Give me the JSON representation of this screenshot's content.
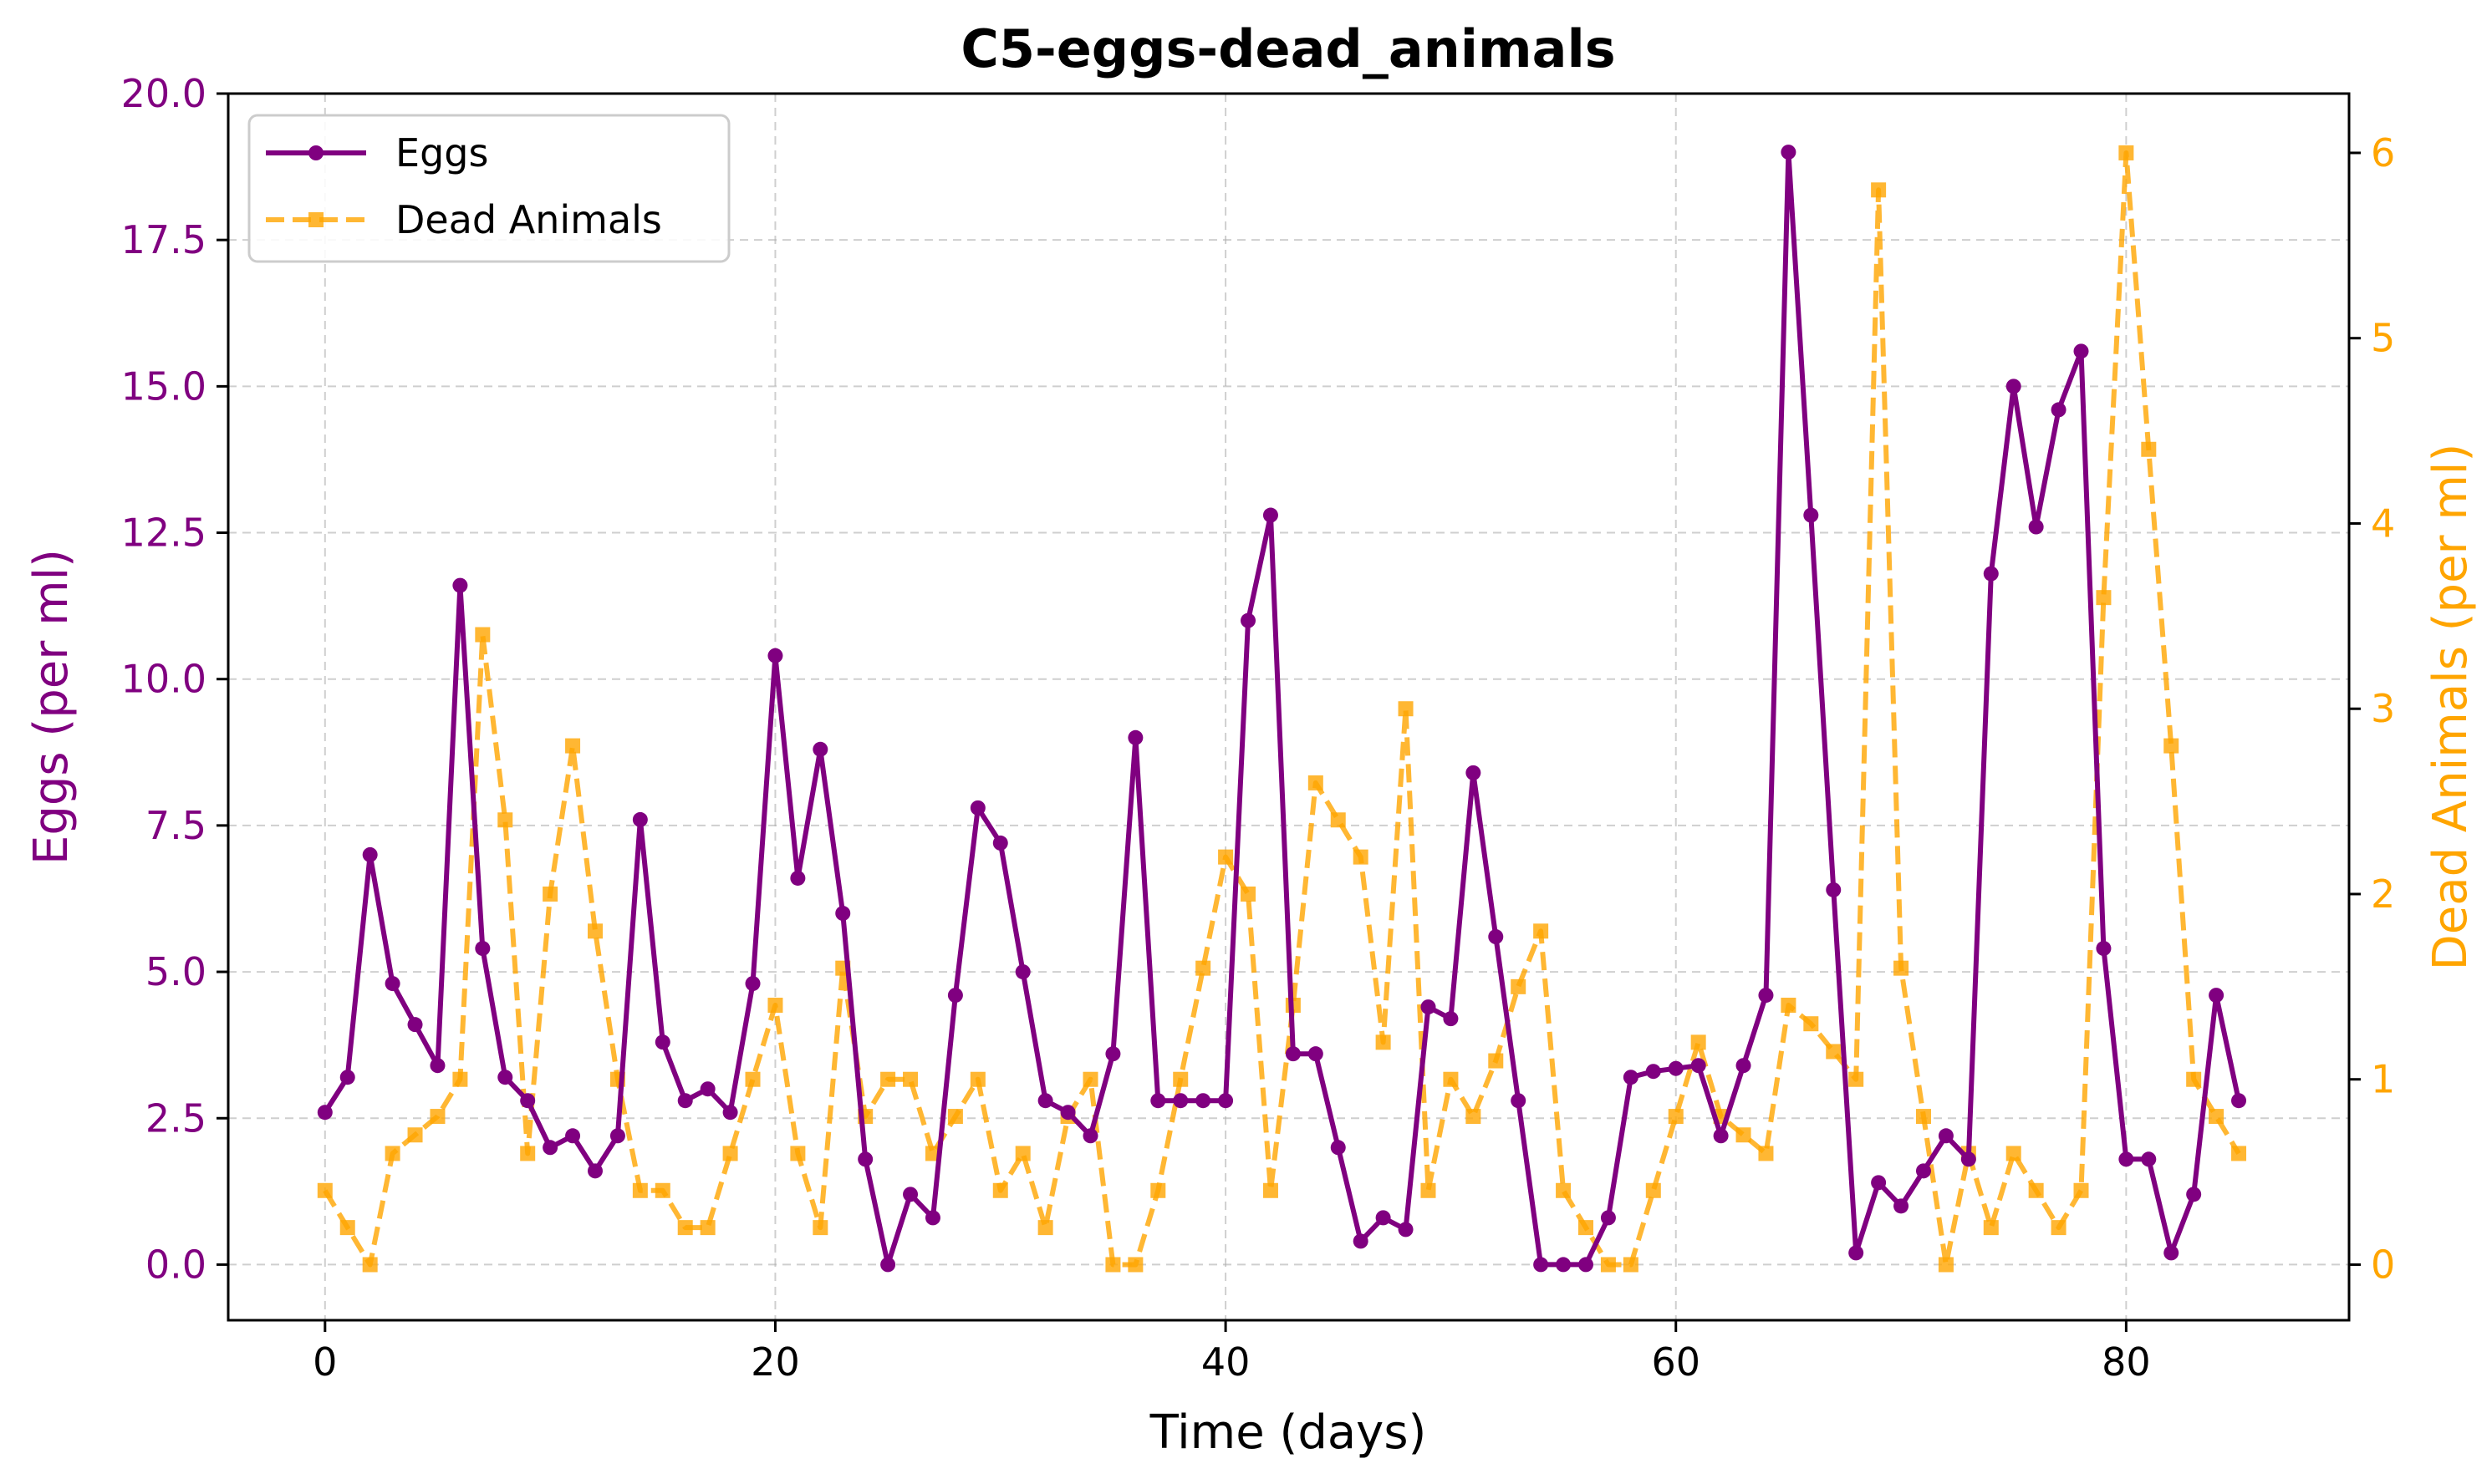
{
  "chart_data": {
    "type": "line",
    "title": "C5-eggs-dead_animals",
    "xlabel": "Time (days)",
    "ylabel": "Eggs (per ml)",
    "y2label": "Dead Animals (per ml)",
    "xlim": [
      -4.3,
      89.9
    ],
    "ylim": [
      -0.95,
      20.0
    ],
    "y2lim": [
      -0.3,
      6.32
    ],
    "xticks": [
      0,
      20,
      40,
      60,
      80
    ],
    "yticks": [
      0.0,
      2.5,
      5.0,
      7.5,
      10.0,
      12.5,
      15.0,
      17.5,
      20.0
    ],
    "y2ticks": [
      0,
      1,
      2,
      3,
      4,
      5,
      6
    ],
    "grid": true,
    "legend_position": "top-left",
    "colors": {
      "eggs": "#800080",
      "dead_animals": "#FFA500"
    },
    "series": [
      {
        "name": "Eggs",
        "axis": "left",
        "style": "solid-circle",
        "x": [
          0,
          1,
          2,
          3,
          4,
          5,
          6,
          7,
          8,
          9,
          10,
          11,
          12,
          13,
          14,
          15,
          16,
          17,
          18,
          19,
          20,
          21,
          22,
          23,
          24,
          25,
          26,
          27,
          28,
          29,
          30,
          31,
          32,
          33,
          34,
          35,
          36,
          37,
          38,
          39,
          40,
          41,
          42,
          43,
          44,
          45,
          46,
          47,
          48,
          49,
          50,
          51,
          52,
          53,
          54,
          55,
          56,
          57,
          58,
          59,
          60,
          61,
          62,
          63,
          64,
          65,
          66,
          67,
          68,
          69,
          70,
          71,
          72,
          73,
          74,
          75,
          76,
          77,
          78,
          79,
          80,
          81,
          82,
          83,
          84,
          85
        ],
        "values": [
          2.6,
          3.2,
          7.0,
          4.8,
          4.1,
          3.4,
          11.6,
          5.4,
          3.2,
          2.8,
          2.0,
          2.2,
          1.6,
          2.2,
          7.6,
          3.8,
          2.8,
          3.0,
          2.6,
          4.8,
          10.4,
          6.6,
          8.8,
          6.0,
          1.8,
          0.0,
          1.2,
          0.8,
          4.6,
          7.8,
          7.2,
          5.0,
          2.8,
          2.6,
          2.2,
          3.6,
          9.0,
          2.8,
          2.8,
          2.8,
          2.8,
          11.0,
          12.8,
          3.6,
          3.6,
          2.0,
          0.4,
          0.8,
          0.6,
          4.4,
          4.2,
          8.4,
          5.6,
          2.8,
          0.0,
          0.0,
          0.0,
          0.8,
          3.2,
          3.3,
          3.35,
          3.4,
          2.2,
          3.4,
          4.6,
          19.0,
          12.8,
          6.4,
          0.2,
          1.4,
          1.0,
          1.6,
          2.2,
          1.8,
          11.8,
          15.0,
          12.6,
          14.6,
          15.6,
          5.4,
          1.8,
          1.8,
          0.2,
          1.2,
          4.6,
          2.8
        ]
      },
      {
        "name": "Dead Animals",
        "axis": "right",
        "style": "dashed-square",
        "x": [
          0,
          1,
          2,
          3,
          4,
          5,
          6,
          7,
          8,
          9,
          10,
          11,
          12,
          13,
          14,
          15,
          16,
          17,
          18,
          19,
          20,
          21,
          22,
          23,
          24,
          25,
          26,
          27,
          28,
          29,
          30,
          31,
          32,
          33,
          34,
          35,
          36,
          37,
          38,
          39,
          40,
          41,
          42,
          43,
          44,
          45,
          46,
          47,
          48,
          49,
          50,
          51,
          52,
          53,
          54,
          55,
          56,
          57,
          58,
          59,
          60,
          61,
          62,
          63,
          64,
          65,
          66,
          67,
          68,
          69,
          70,
          71,
          72,
          73,
          74,
          75,
          76,
          77,
          78,
          79,
          80,
          81,
          82,
          83,
          84,
          85
        ],
        "values": [
          0.4,
          0.2,
          0.0,
          0.6,
          0.7,
          0.8,
          1.0,
          3.4,
          2.4,
          0.6,
          2.0,
          2.8,
          1.8,
          1.0,
          0.4,
          0.4,
          0.2,
          0.2,
          0.6,
          1.0,
          1.4,
          0.6,
          0.2,
          1.6,
          0.8,
          1.0,
          1.0,
          0.6,
          0.8,
          1.0,
          0.4,
          0.6,
          0.2,
          0.8,
          1.0,
          0.0,
          0.0,
          0.4,
          1.0,
          1.6,
          2.2,
          2.0,
          0.4,
          1.4,
          2.6,
          2.4,
          2.2,
          1.2,
          3.0,
          0.4,
          1.0,
          0.8,
          1.1,
          1.5,
          1.8,
          0.4,
          0.2,
          0.0,
          0.0,
          0.4,
          0.8,
          1.2,
          0.8,
          0.7,
          0.6,
          1.4,
          1.3,
          1.15,
          1.0,
          5.8,
          1.6,
          0.8,
          0.0,
          0.6,
          0.2,
          0.6,
          0.4,
          0.2,
          0.4,
          3.6,
          6.0,
          4.4,
          2.8,
          1.0,
          0.8,
          0.6
        ]
      }
    ]
  }
}
